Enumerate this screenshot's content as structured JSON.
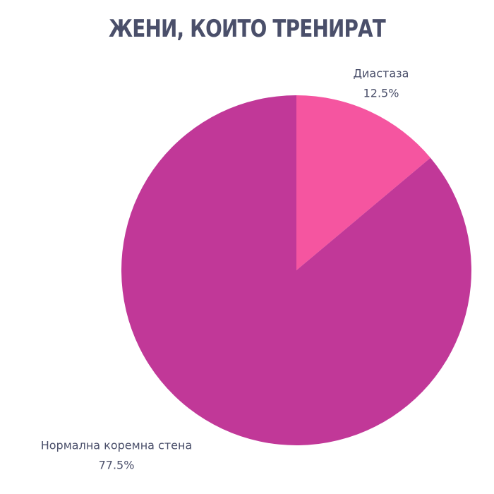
{
  "chart_data": {
    "type": "pie",
    "title": "ЖЕНИ, КОИТО ТРЕНИРАТ",
    "categories": [
      "Диастаза",
      "Нормална коремна стена"
    ],
    "values": [
      12.5,
      77.5
    ],
    "value_labels": [
      "12.5%",
      "77.5%"
    ],
    "colors": [
      "#f555a0",
      "#c13898"
    ]
  }
}
